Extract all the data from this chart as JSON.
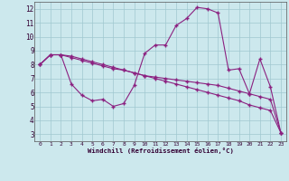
{
  "background_color": "#cce8ed",
  "grid_color": "#a0c8d0",
  "line_color": "#8b2080",
  "xlim": [
    -0.5,
    23.5
  ],
  "ylim": [
    2.5,
    12.5
  ],
  "xticks": [
    0,
    1,
    2,
    3,
    4,
    5,
    6,
    7,
    8,
    9,
    10,
    11,
    12,
    13,
    14,
    15,
    16,
    17,
    18,
    19,
    20,
    21,
    22,
    23
  ],
  "yticks": [
    3,
    4,
    5,
    6,
    7,
    8,
    9,
    10,
    11,
    12
  ],
  "xlabel": "Windchill (Refroidissement éolien,°C)",
  "line1_x": [
    0,
    1,
    2,
    3,
    4,
    5,
    6,
    7,
    8,
    9,
    10,
    11,
    12,
    13,
    14,
    15,
    16,
    17,
    18,
    19,
    20,
    21,
    22,
    23
  ],
  "line1_y": [
    8.0,
    8.7,
    8.7,
    8.6,
    8.4,
    8.2,
    8.0,
    7.8,
    7.6,
    7.4,
    7.2,
    7.0,
    6.8,
    6.6,
    6.4,
    6.2,
    6.0,
    5.8,
    5.6,
    5.4,
    5.1,
    4.9,
    4.7,
    3.1
  ],
  "line2_x": [
    0,
    1,
    2,
    3,
    4,
    5,
    6,
    7,
    8,
    9,
    10,
    11,
    12,
    13,
    14,
    15,
    16,
    17,
    18,
    19,
    20,
    21,
    22,
    23
  ],
  "line2_y": [
    8.0,
    8.7,
    8.7,
    8.5,
    8.3,
    8.1,
    7.9,
    7.7,
    7.6,
    7.4,
    7.2,
    7.1,
    7.0,
    6.9,
    6.8,
    6.7,
    6.6,
    6.5,
    6.3,
    6.1,
    5.9,
    5.7,
    5.5,
    3.1
  ],
  "line3_x": [
    0,
    1,
    2,
    3,
    4,
    5,
    6,
    7,
    8,
    9,
    10,
    11,
    12,
    13,
    14,
    15,
    16,
    17,
    18,
    19,
    20,
    21,
    22,
    23
  ],
  "line3_y": [
    8.0,
    8.7,
    8.7,
    6.6,
    5.8,
    5.4,
    5.5,
    5.0,
    5.2,
    6.5,
    8.8,
    9.4,
    9.4,
    10.8,
    11.3,
    12.1,
    12.0,
    11.7,
    7.6,
    7.7,
    5.9,
    8.4,
    6.4,
    3.1
  ]
}
